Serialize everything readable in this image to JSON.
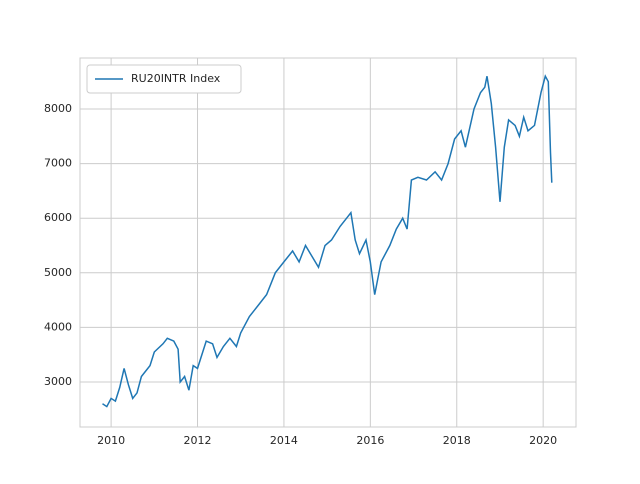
{
  "chart_data": {
    "type": "line",
    "legend": "upper left",
    "grid": true,
    "x": [
      2009.8,
      2009.9,
      2010.0,
      2010.1,
      2010.2,
      2010.3,
      2010.4,
      2010.5,
      2010.6,
      2010.7,
      2010.9,
      2011.0,
      2011.2,
      2011.3,
      2011.45,
      2011.55,
      2011.6,
      2011.7,
      2011.8,
      2011.9,
      2012.0,
      2012.2,
      2012.35,
      2012.45,
      2012.6,
      2012.75,
      2012.9,
      2013.0,
      2013.2,
      2013.4,
      2013.6,
      2013.8,
      2014.0,
      2014.2,
      2014.35,
      2014.5,
      2014.65,
      2014.8,
      2014.95,
      2015.1,
      2015.3,
      2015.45,
      2015.55,
      2015.65,
      2015.75,
      2015.9,
      2016.0,
      2016.1,
      2016.25,
      2016.45,
      2016.6,
      2016.75,
      2016.85,
      2016.95,
      2017.1,
      2017.3,
      2017.5,
      2017.65,
      2017.8,
      2017.95,
      2018.1,
      2018.2,
      2018.4,
      2018.55,
      2018.65,
      2018.7,
      2018.8,
      2018.9,
      2019.0,
      2019.1,
      2019.2,
      2019.35,
      2019.45,
      2019.55,
      2019.65,
      2019.8,
      2019.95,
      2020.05,
      2020.12,
      2020.17,
      2020.2
    ],
    "series": [
      {
        "name": "RU20INTR Index",
        "color": "#1f77b4",
        "values": [
          2600,
          2550,
          2700,
          2650,
          2900,
          3250,
          2950,
          2700,
          2800,
          3100,
          3300,
          3550,
          3700,
          3800,
          3750,
          3600,
          3000,
          3100,
          2850,
          3300,
          3250,
          3750,
          3700,
          3450,
          3650,
          3800,
          3650,
          3900,
          4200,
          4400,
          4600,
          5000,
          5200,
          5400,
          5200,
          5500,
          5300,
          5100,
          5500,
          5600,
          5850,
          6000,
          6100,
          5600,
          5350,
          5600,
          5200,
          4600,
          5200,
          5500,
          5800,
          6000,
          5800,
          6700,
          6750,
          6700,
          6850,
          6700,
          7000,
          7450,
          7600,
          7300,
          8000,
          8300,
          8400,
          8600,
          8100,
          7300,
          6300,
          7300,
          7800,
          7700,
          7500,
          7850,
          7600,
          7700,
          8300,
          8600,
          8500,
          7200,
          6650
        ]
      }
    ],
    "xlim": [
      2009.28,
      2020.76
    ],
    "xticks": [
      2010,
      2012,
      2014,
      2016,
      2018,
      2020
    ],
    "ylim": [
      2176,
      8934
    ],
    "yticks": [
      3000,
      4000,
      5000,
      6000,
      7000,
      8000
    ]
  }
}
